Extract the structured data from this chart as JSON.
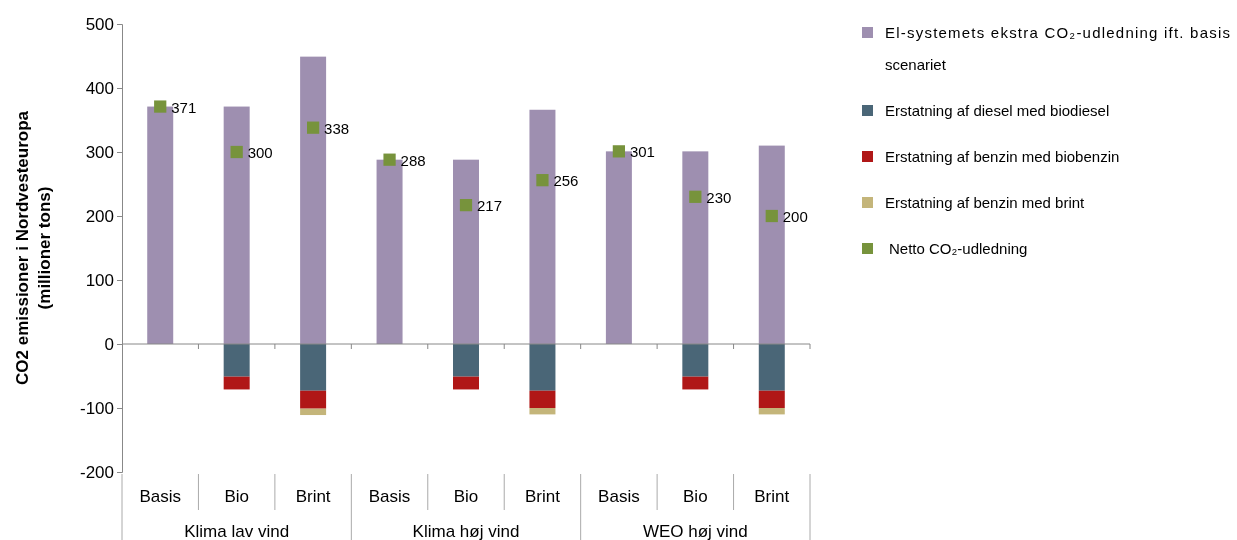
{
  "chart_data": {
    "type": "bar",
    "stacked": true,
    "ylabel": "CO2 emissioner i Nordvesteuropa\n(millioner  tons)",
    "categories": [
      "Basis",
      "Bio",
      "Brint",
      "Basis",
      "Bio",
      "Brint",
      "Basis",
      "Bio",
      "Brint"
    ],
    "annotations": [
      "Klima lav vind",
      "Klima høj vind",
      "WEO høj vind"
    ],
    "series": [
      {
        "name": "El-systemets ekstra CO₂-udledning ift. basis scenariet",
        "color": "#9e8fb0",
        "values": [
          371,
          371,
          449,
          288,
          288,
          366,
          301,
          301,
          310
        ]
      },
      {
        "name": "Erstatning af diesel med biodiesel",
        "color": "#4a6677",
        "values": [
          0,
          -51,
          -73,
          0,
          -51,
          -73,
          0,
          -51,
          -73
        ]
      },
      {
        "name": "Erstatning af benzin med biobenzin",
        "color": "#b01717",
        "values": [
          0,
          -20,
          -28,
          0,
          -20,
          -27,
          0,
          -20,
          -27
        ]
      },
      {
        "name": "Erstatning af benzin med brint",
        "color": "#c4b57a",
        "values": [
          0,
          0,
          -10,
          0,
          0,
          -10,
          0,
          0,
          -10
        ]
      },
      {
        "name": "Netto CO₂-udledning",
        "type": "scatter",
        "marker": "square",
        "color": "#77933c",
        "values": [
          371,
          300,
          338,
          288,
          217,
          256,
          301,
          230,
          200
        ],
        "value_labels": [
          "371",
          "300",
          "338",
          "288",
          "217",
          "256",
          "301",
          "230",
          "200"
        ]
      }
    ],
    "ylim": [
      -200,
      500
    ],
    "yticks": [
      -200,
      -100,
      0,
      100,
      200,
      300,
      400,
      500
    ],
    "legend": "right"
  }
}
